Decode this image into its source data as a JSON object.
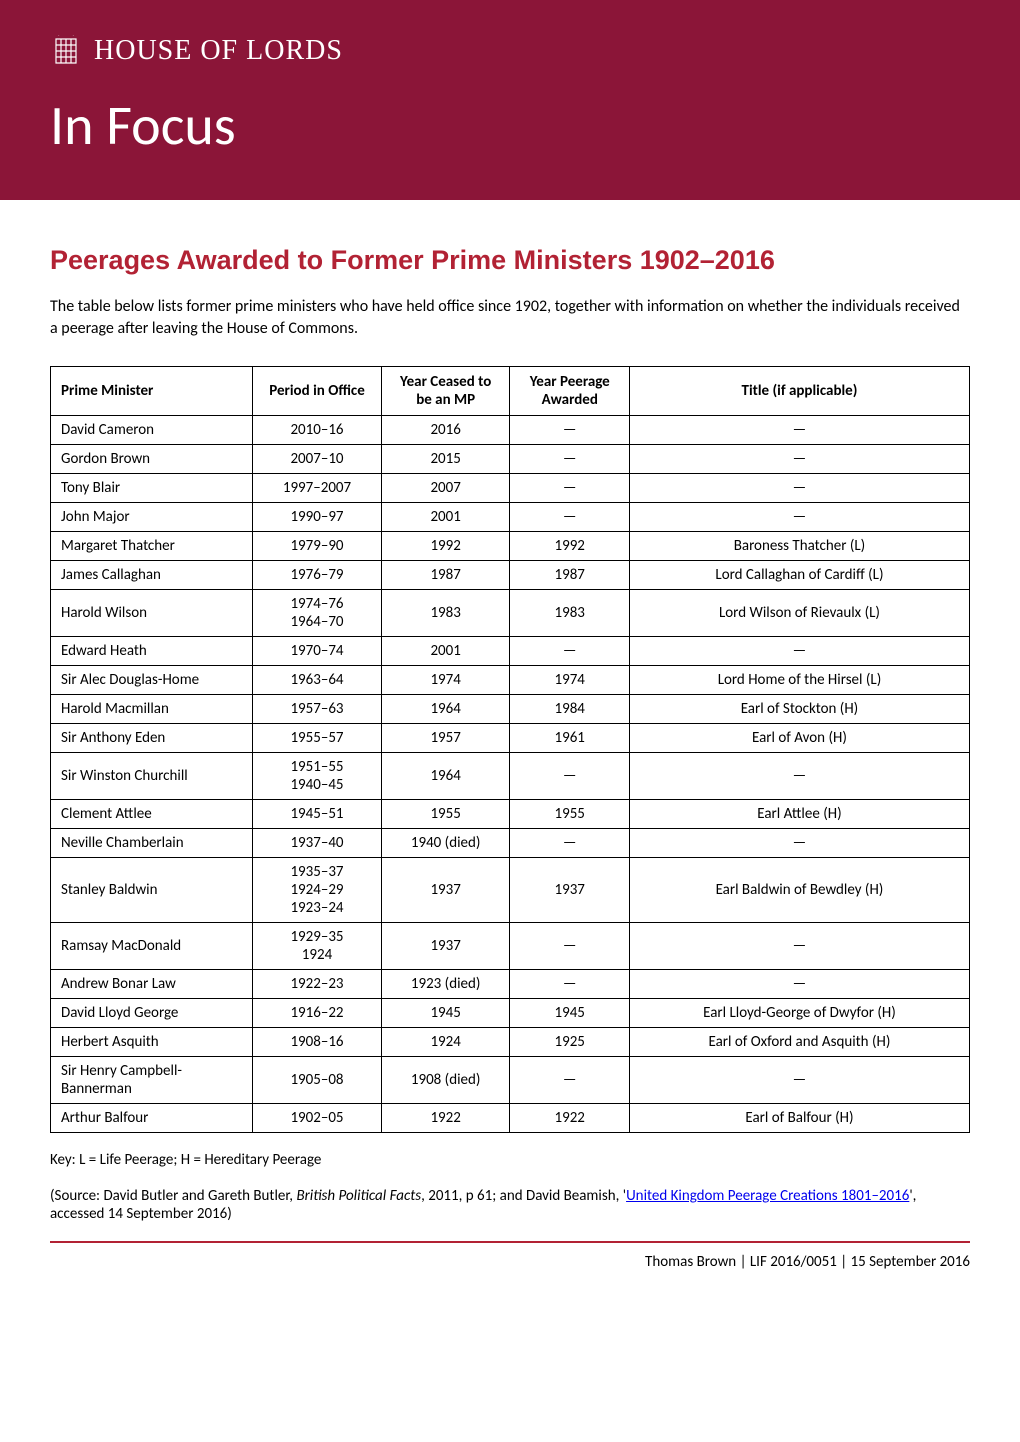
{
  "header": {
    "house_label": "HOUSE OF LORDS",
    "in_focus": "In Focus"
  },
  "title": "Peerages Awarded to Former Prime Ministers 1902–2016",
  "intro": "The table below lists former prime ministers who have held office since 1902, together with information on whether the individuals received a peerage after leaving the House of Commons.",
  "table": {
    "columns": [
      "Prime Minister",
      "Period in Office",
      "Year Ceased to be an MP",
      "Year Peerage Awarded",
      "Title (if applicable)"
    ],
    "rows": [
      {
        "name": "David Cameron",
        "period": "2010–16",
        "ceased": "2016",
        "awarded": "—",
        "title": "—"
      },
      {
        "name": "Gordon Brown",
        "period": "2007–10",
        "ceased": "2015",
        "awarded": "—",
        "title": "—"
      },
      {
        "name": "Tony Blair",
        "period": "1997–2007",
        "ceased": "2007",
        "awarded": "—",
        "title": "—"
      },
      {
        "name": "John Major",
        "period": "1990–97",
        "ceased": "2001",
        "awarded": "—",
        "title": "—"
      },
      {
        "name": "Margaret Thatcher",
        "period": "1979–90",
        "ceased": "1992",
        "awarded": "1992",
        "title": "Baroness Thatcher (L)"
      },
      {
        "name": "James Callaghan",
        "period": "1976–79",
        "ceased": "1987",
        "awarded": "1987",
        "title": "Lord Callaghan of Cardiff (L)"
      },
      {
        "name": "Harold Wilson",
        "period": "1974–76\n1964–70",
        "ceased": "1983",
        "awarded": "1983",
        "title": "Lord Wilson of Rievaulx (L)"
      },
      {
        "name": "Edward Heath",
        "period": "1970–74",
        "ceased": "2001",
        "awarded": "—",
        "title": "—"
      },
      {
        "name": "Sir Alec Douglas-Home",
        "period": "1963–64",
        "ceased": "1974",
        "awarded": "1974",
        "title": "Lord Home of the Hirsel (L)"
      },
      {
        "name": "Harold Macmillan",
        "period": "1957–63",
        "ceased": "1964",
        "awarded": "1984",
        "title": "Earl of Stockton (H)"
      },
      {
        "name": "Sir Anthony Eden",
        "period": "1955–57",
        "ceased": "1957",
        "awarded": "1961",
        "title": "Earl of Avon (H)"
      },
      {
        "name": "Sir Winston Churchill",
        "period": "1951–55\n1940–45",
        "ceased": "1964",
        "awarded": "—",
        "title": "—"
      },
      {
        "name": "Clement Attlee",
        "period": "1945–51",
        "ceased": "1955",
        "awarded": "1955",
        "title": "Earl Attlee (H)"
      },
      {
        "name": "Neville Chamberlain",
        "period": "1937–40",
        "ceased": "1940 (died)",
        "awarded": "—",
        "title": "—"
      },
      {
        "name": "Stanley Baldwin",
        "period": "1935–37\n1924–29\n1923–24",
        "ceased": "1937",
        "awarded": "1937",
        "title": "Earl Baldwin of Bewdley (H)"
      },
      {
        "name": "Ramsay MacDonald",
        "period": "1929–35\n1924",
        "ceased": "1937",
        "awarded": "—",
        "title": "—"
      },
      {
        "name": "Andrew Bonar Law",
        "period": "1922–23",
        "ceased": "1923 (died)",
        "awarded": "—",
        "title": "—"
      },
      {
        "name": "David Lloyd George",
        "period": "1916–22",
        "ceased": "1945",
        "awarded": "1945",
        "title": "Earl Lloyd-George of Dwyfor (H)"
      },
      {
        "name": "Herbert Asquith",
        "period": "1908–16",
        "ceased": "1924",
        "awarded": "1925",
        "title": "Earl of Oxford and Asquith (H)"
      },
      {
        "name": "Sir Henry Campbell-Bannerman",
        "period": "1905–08",
        "ceased": "1908 (died)",
        "awarded": "—",
        "title": "—"
      },
      {
        "name": "Arthur Balfour",
        "period": "1902–05",
        "ceased": "1922",
        "awarded": "1922",
        "title": "Earl of Balfour (H)"
      }
    ]
  },
  "key": "Key: L = Life Peerage; H = Hereditary Peerage",
  "source": {
    "prefix": "(Source: David Butler and Gareth Butler, ",
    "italic": "British Political Facts",
    "mid": ", 2011, p 61; and David Beamish, '",
    "link_text": "United Kingdom Peerage Creations 1801–2016",
    "suffix": "', accessed 14 September 2016)"
  },
  "footer": "Thomas Brown | LIF 2016/0051 | 15 September 2016",
  "colors": {
    "banner_bg": "#8b1538",
    "title_color": "#b22234",
    "divider_color": "#b22234",
    "link_color": "#0000ee",
    "text_color": "#000000",
    "bg_color": "#ffffff"
  }
}
